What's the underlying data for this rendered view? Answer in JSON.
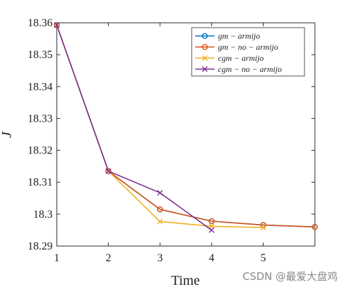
{
  "chart_data": {
    "type": "line",
    "title": "",
    "xlabel": "Time",
    "ylabel": "J",
    "xlim": [
      1,
      6
    ],
    "ylim": [
      18.29,
      18.36
    ],
    "xticks": [
      1,
      2,
      3,
      4,
      5
    ],
    "xtick_labels": [
      "1",
      "2",
      "3",
      "4",
      "5"
    ],
    "yticks": [
      18.29,
      18.3,
      18.31,
      18.32,
      18.33,
      18.34,
      18.35,
      18.36
    ],
    "ytick_labels": [
      "18.29",
      "18.3",
      "18.31",
      "18.32",
      "18.33",
      "18.34",
      "18.35",
      "18.36"
    ],
    "grid": false,
    "box": true,
    "legend_position": "top-right",
    "series": [
      {
        "name": "gm − armijo",
        "color": "#0072BD",
        "marker": "circle",
        "x": [
          1,
          2,
          3,
          4,
          5,
          6
        ],
        "y": [
          18.3593,
          18.3135,
          18.3015,
          18.2978,
          18.2966,
          18.296
        ]
      },
      {
        "name": "gm − no − armijo",
        "color": "#D95319",
        "marker": "circle",
        "x": [
          1,
          2,
          3,
          4,
          5,
          6
        ],
        "y": [
          18.3593,
          18.3135,
          18.3015,
          18.2978,
          18.2966,
          18.296
        ]
      },
      {
        "name": "cgm − armijo",
        "color": "#EDB120",
        "marker": "x",
        "x": [
          1,
          2,
          3,
          4,
          5
        ],
        "y": [
          18.3593,
          18.3135,
          18.2977,
          18.2962,
          18.2958
        ]
      },
      {
        "name": "cgm − no − armijo",
        "color": "#7E2F8E",
        "marker": "x",
        "x": [
          1,
          2,
          3,
          4
        ],
        "y": [
          18.3593,
          18.3135,
          18.3067,
          18.295
        ]
      }
    ]
  },
  "watermark": "CSDN @最爱大盘鸡"
}
